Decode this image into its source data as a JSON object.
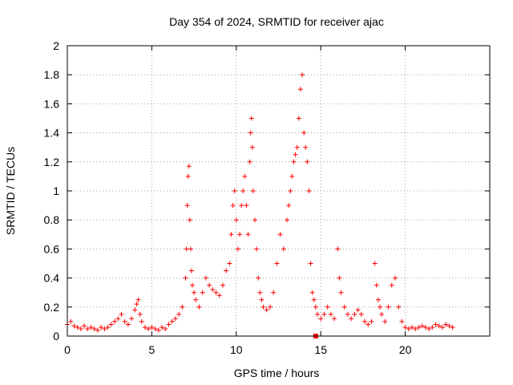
{
  "chart_data": {
    "type": "scatter",
    "title": "Day 354 of 2024, SRMTID for receiver ajac",
    "xlabel": "GPS time / hours",
    "ylabel": "SRMTID / TECUs",
    "xlim": [
      0,
      25
    ],
    "ylim": [
      0,
      2
    ],
    "xticks": [
      0,
      5,
      10,
      15,
      20
    ],
    "yticks": [
      0,
      0.2,
      0.4,
      0.6,
      0.8,
      1,
      1.2,
      1.4,
      1.6,
      1.8,
      2
    ],
    "xtick_labels": [
      "0",
      "5",
      "10",
      "15",
      "20"
    ],
    "ytick_labels": [
      "0",
      "0.2",
      "0.4",
      "0.6",
      "0.8",
      "1",
      "1.2",
      "1.4",
      "1.6",
      "1.8",
      "2"
    ],
    "grid": true,
    "marker": "+",
    "color": "#ff0000",
    "series": [
      {
        "name": "SRMTID",
        "x": [
          0.0,
          0.2,
          0.4,
          0.6,
          0.8,
          1.0,
          1.2,
          1.4,
          1.6,
          1.8,
          2.0,
          2.2,
          2.4,
          2.6,
          2.8,
          3.0,
          3.2,
          3.4,
          3.6,
          3.8,
          4.0,
          4.1,
          4.2,
          4.3,
          4.4,
          4.6,
          4.8,
          5.0,
          5.2,
          5.4,
          5.6,
          5.8,
          6.0,
          6.2,
          6.4,
          6.6,
          6.8,
          7.0,
          7.05,
          7.1,
          7.15,
          7.2,
          7.25,
          7.3,
          7.35,
          7.4,
          7.5,
          7.6,
          7.8,
          8.0,
          8.2,
          8.4,
          8.6,
          8.8,
          9.0,
          9.2,
          9.4,
          9.6,
          9.7,
          9.8,
          9.9,
          10.0,
          10.1,
          10.2,
          10.3,
          10.4,
          10.5,
          10.6,
          10.7,
          10.8,
          10.85,
          10.9,
          10.95,
          11.0,
          11.1,
          11.2,
          11.3,
          11.4,
          11.5,
          11.6,
          11.8,
          12.0,
          12.2,
          12.4,
          12.6,
          12.8,
          13.0,
          13.1,
          13.2,
          13.3,
          13.4,
          13.5,
          13.6,
          13.7,
          13.8,
          13.9,
          14.0,
          14.1,
          14.2,
          14.3,
          14.4,
          14.5,
          14.6,
          14.7,
          14.8,
          15.0,
          15.2,
          15.4,
          15.6,
          15.8,
          16.0,
          16.1,
          16.2,
          16.4,
          16.6,
          16.8,
          17.0,
          17.2,
          17.4,
          17.6,
          17.8,
          18.0,
          18.2,
          18.3,
          18.4,
          18.5,
          18.6,
          18.8,
          19.0,
          19.2,
          19.4,
          19.6,
          19.8,
          20.0,
          20.2,
          20.4,
          20.6,
          20.8,
          21.0,
          21.2,
          21.4,
          21.6,
          21.8,
          22.0,
          22.2,
          22.4,
          22.6,
          22.8
        ],
        "y": [
          0.08,
          0.1,
          0.07,
          0.06,
          0.05,
          0.07,
          0.05,
          0.06,
          0.05,
          0.04,
          0.06,
          0.05,
          0.06,
          0.08,
          0.1,
          0.12,
          0.15,
          0.1,
          0.08,
          0.12,
          0.18,
          0.22,
          0.25,
          0.15,
          0.1,
          0.06,
          0.05,
          0.06,
          0.05,
          0.04,
          0.06,
          0.05,
          0.08,
          0.1,
          0.12,
          0.15,
          0.2,
          0.4,
          0.6,
          0.9,
          1.1,
          1.17,
          0.8,
          0.6,
          0.45,
          0.35,
          0.3,
          0.25,
          0.2,
          0.3,
          0.4,
          0.35,
          0.32,
          0.3,
          0.28,
          0.35,
          0.45,
          0.5,
          0.7,
          0.9,
          1.0,
          0.8,
          0.6,
          0.7,
          0.9,
          1.0,
          1.1,
          0.9,
          0.7,
          1.2,
          1.4,
          1.5,
          1.3,
          1.0,
          0.8,
          0.6,
          0.4,
          0.3,
          0.25,
          0.2,
          0.18,
          0.2,
          0.3,
          0.5,
          0.7,
          0.6,
          0.8,
          0.9,
          1.0,
          1.1,
          1.2,
          1.25,
          1.3,
          1.5,
          1.7,
          1.8,
          1.4,
          1.3,
          1.2,
          1.0,
          0.5,
          0.3,
          0.25,
          0.2,
          0.15,
          0.12,
          0.15,
          0.2,
          0.15,
          0.12,
          0.6,
          0.4,
          0.3,
          0.2,
          0.15,
          0.12,
          0.15,
          0.18,
          0.15,
          0.1,
          0.08,
          0.1,
          0.5,
          0.35,
          0.25,
          0.2,
          0.15,
          0.1,
          0.2,
          0.35,
          0.4,
          0.2,
          0.1,
          0.06,
          0.05,
          0.06,
          0.05,
          0.06,
          0.07,
          0.06,
          0.05,
          0.06,
          0.08,
          0.07,
          0.06,
          0.08,
          0.07,
          0.06
        ]
      }
    ],
    "annotations": [
      {
        "text": "",
        "x": 14.7,
        "y": 0.0,
        "kind": "square-marker"
      }
    ]
  }
}
